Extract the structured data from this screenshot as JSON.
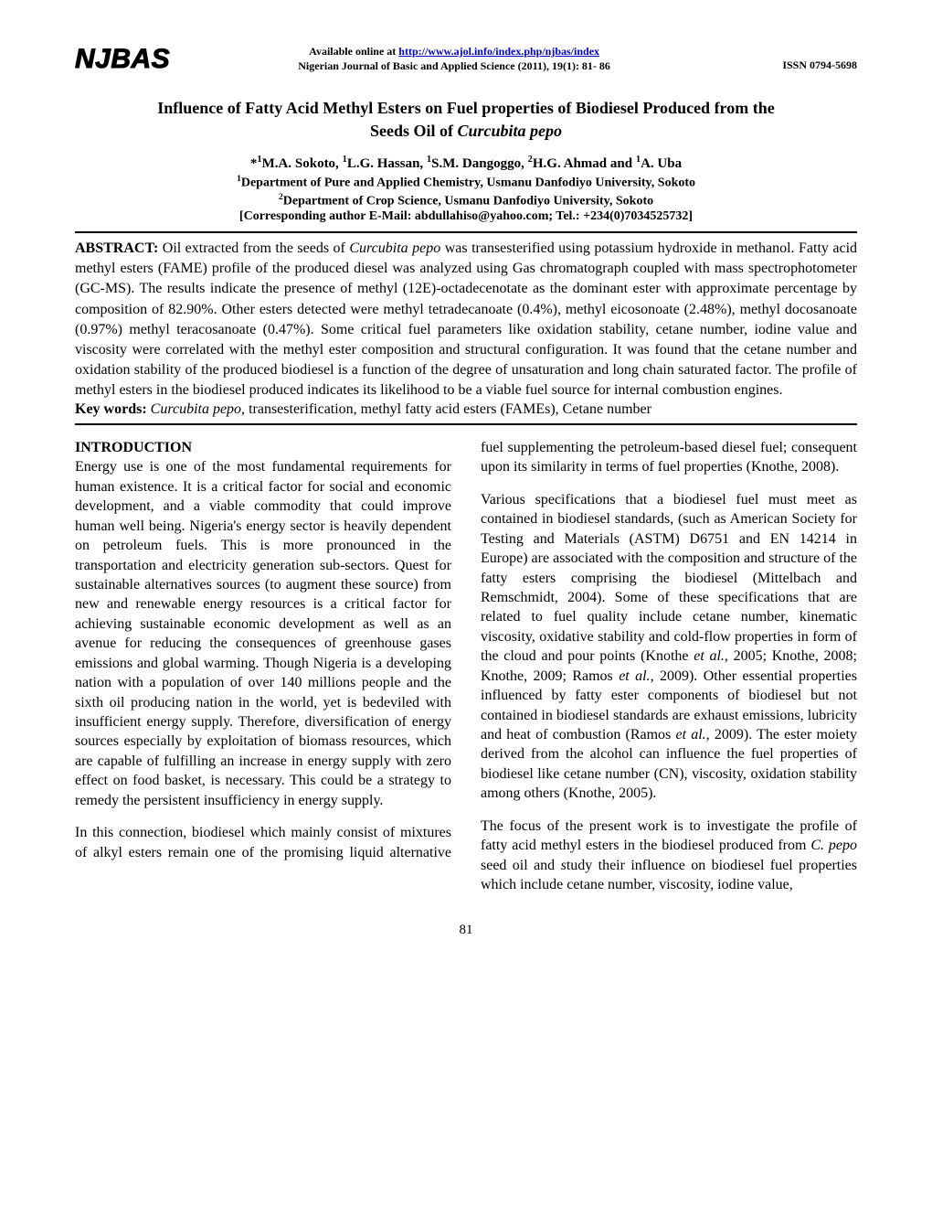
{
  "header": {
    "logo_text": "NJBAS",
    "available_prefix": "Available online at ",
    "available_url_text": "http://www.ajol.info/index.php/njbas/index",
    "journal_citation": "Nigerian Journal of Basic and Applied Science (2011), 19(1): 81- 86",
    "issn": "ISSN 0794-5698"
  },
  "title": {
    "line1": "Influence of Fatty Acid Methyl Esters on Fuel properties of Biodiesel Produced from the",
    "line2_prefix": "Seeds Oil of ",
    "line2_italic": "Curcubita pepo"
  },
  "authors_html": "*<sup>1</sup>M.A. Sokoto, <sup>1</sup>L.G. Hassan, <sup>1</sup>S.M. Dangoggo, <sup>2</sup>H.G. Ahmad and <sup>1</sup>A. Uba",
  "affil1_html": "<sup>1</sup>Department of Pure and Applied Chemistry, Usmanu Danfodiyo University, Sokoto",
  "affil2_html": "<sup>2</sup>Department of Crop Science, Usmanu Danfodiyo University, Sokoto",
  "corresponding": "[Corresponding author E-Mail: abdullahiso@yahoo.com; Tel.: +234(0)7034525732]",
  "abstract": {
    "label": "ABSTRACT:",
    "pre_italic": " Oil extracted from the seeds of ",
    "italic1": "Curcubita pepo",
    "body": " was transesterified using potassium hydroxide in methanol. Fatty acid methyl esters (FAME) profile of the produced diesel was analyzed using Gas chromatograph coupled with mass spectrophotometer (GC-MS). The results indicate the presence of methyl (12E)-octadecenotate as the dominant ester with approximate percentage by composition of 82.90%. Other esters detected were methyl tetradecanoate (0.4%), methyl eicosonoate (2.48%), methyl docosanoate (0.97%) methyl teracosanoate (0.47%). Some critical fuel parameters like oxidation stability, cetane number, iodine value and viscosity were correlated with the methyl ester composition and structural configuration. It was found that the cetane number and oxidation stability of the produced biodiesel is a function of the degree of unsaturation and long chain saturated factor. The profile of methyl esters in the biodiesel produced indicates its likelihood to be a viable fuel source for internal combustion engines."
  },
  "keywords": {
    "label": "Key words:",
    "italic": " Curcubita pepo,",
    "rest": " transesterification, methyl fatty acid esters (FAMEs), Cetane number"
  },
  "body": {
    "intro_heading": "INTRODUCTION",
    "p1": "Energy use is one of the most fundamental requirements for human existence. It is a critical factor for social and economic development, and a viable commodity that could improve human well being. Nigeria's energy sector is heavily dependent on petroleum fuels. This is more pronounced in the transportation and electricity generation sub-sectors. Quest for sustainable alternatives sources (to augment these source) from new and renewable energy resources is a critical factor for achieving sustainable economic development as well as an avenue for reducing the consequences of greenhouse gases emissions and global warming. Though Nigeria is a developing nation with a population of over 140 millions people and the sixth oil producing nation in the world, yet is bedeviled with insufficient energy supply. Therefore, diversification of energy sources especially by exploitation of biomass resources, which are capable of fulfilling an increase in energy supply with zero effect on food basket, is necessary. This could be a strategy to remedy the persistent insufficiency in energy supply.",
    "p2": "In this connection, biodiesel which mainly consist of mixtures of alkyl esters remain one of the promising liquid alternative fuel supplementing the petroleum-based diesel fuel; consequent upon its similarity in terms of fuel properties (Knothe, 2008).",
    "p3_pre": "Various specifications that a biodiesel fuel must meet as contained in biodiesel standards, (such as American Society for Testing and Materials (ASTM) D6751 and EN 14214 in Europe) are associated with the composition and structure of the fatty esters comprising the biodiesel (Mittelbach and Remschmidt, 2004). Some of these specifications that are related to fuel quality include cetane number, kinematic viscosity, oxidative stability and cold-flow properties in form of the cloud and pour points (Knothe ",
    "p3_i1": "et al.",
    "p3_mid1": ", 2005; Knothe, 2008; Knothe, 2009; Ramos ",
    "p3_i2": "et al.,",
    "p3_mid2": " 2009). Other essential properties influenced by fatty ester components of biodiesel but not contained in biodiesel standards are exhaust emissions, lubricity and heat of combustion (Ramos ",
    "p3_i3": "et al.,",
    "p3_post": " 2009).  The ester moiety derived from the alcohol can influence the fuel properties of biodiesel like cetane number (CN), viscosity, oxidation stability among others (Knothe, 2005).",
    "p4_pre": "The focus of the present work is to investigate the profile of fatty acid methyl esters in the biodiesel produced from ",
    "p4_i1": "C. pepo",
    "p4_mid": " seed oil and ",
    "p4_i2": "s",
    "p4_post": "tudy their influence on biodiesel fuel properties which include cetane number, viscosity, iodine value,"
  },
  "page_number": "81"
}
